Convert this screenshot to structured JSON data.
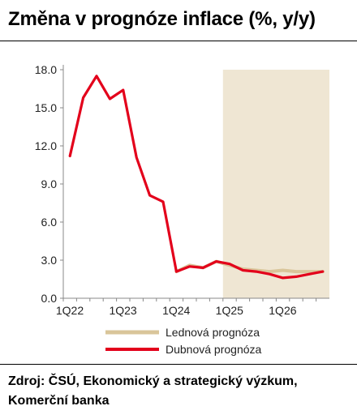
{
  "title": "Změna v prognóze inflace (%, y/y)",
  "source": "Zdroj: ČSÚ, Ekonomický a strategický výzkum, Komerční banka",
  "chart_data": {
    "type": "line",
    "x": [
      "1Q22",
      "2Q22",
      "3Q22",
      "4Q22",
      "1Q23",
      "2Q23",
      "3Q23",
      "4Q23",
      "1Q24",
      "2Q24",
      "3Q24",
      "4Q24",
      "1Q25",
      "2Q25",
      "3Q25",
      "4Q25",
      "1Q26",
      "2Q26",
      "3Q26",
      "4Q26"
    ],
    "xticks": [
      "1Q22",
      "1Q23",
      "1Q24",
      "1Q25",
      "1Q26"
    ],
    "yticks": [
      "0.0",
      "3.0",
      "6.0",
      "9.0",
      "12.0",
      "15.0",
      "18.0"
    ],
    "ylim": [
      0,
      18
    ],
    "forecast_shade_from": "1Q25",
    "series": [
      {
        "name": "Lednová prognóza",
        "color": "#d9c59a",
        "values": [
          null,
          null,
          null,
          null,
          null,
          null,
          null,
          null,
          2.1,
          2.6,
          2.4,
          2.9,
          2.6,
          2.3,
          2.2,
          2.1,
          2.2,
          2.1,
          2.1,
          2.1
        ]
      },
      {
        "name": "Dubnová prognóza",
        "color": "#e3001b",
        "values": [
          11.2,
          15.8,
          17.5,
          15.7,
          16.4,
          11.1,
          8.1,
          7.6,
          2.1,
          2.5,
          2.4,
          2.9,
          2.7,
          2.2,
          2.1,
          1.9,
          1.6,
          1.7,
          1.9,
          2.1
        ]
      }
    ]
  }
}
